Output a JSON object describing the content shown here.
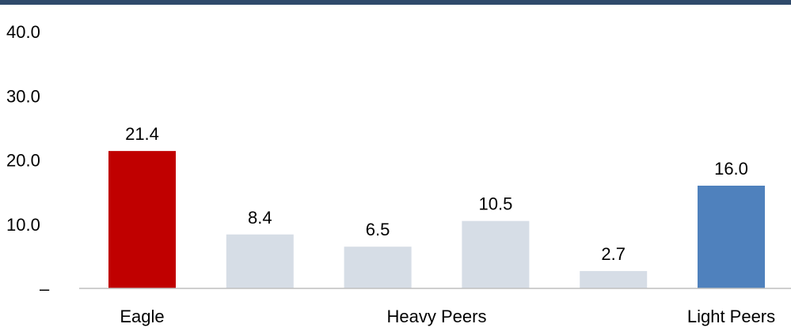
{
  "colors": {
    "top_bar": "#2f4a6b",
    "highlight": "#c00000",
    "peer": "#d6dde6",
    "light_peer": "#4f81bd",
    "axis_line": "#bfbfbf",
    "text": "#000000"
  },
  "chart_data": {
    "type": "bar",
    "ylim": [
      0,
      40
    ],
    "yticks": [
      {
        "value": 0,
        "label": "–"
      },
      {
        "value": 10,
        "label": "10.0"
      },
      {
        "value": 20,
        "label": "20.0"
      },
      {
        "value": 30,
        "label": "30.0"
      },
      {
        "value": 40,
        "label": "40.0"
      }
    ],
    "bars": [
      {
        "value": 21.4,
        "label": "21.4",
        "color": "#c00000"
      },
      {
        "value": 8.4,
        "label": "8.4",
        "color": "#d6dde6"
      },
      {
        "value": 6.5,
        "label": "6.5",
        "color": "#d6dde6"
      },
      {
        "value": 10.5,
        "label": "10.5",
        "color": "#d6dde6"
      },
      {
        "value": 2.7,
        "label": "2.7",
        "color": "#d6dde6"
      },
      {
        "value": 16.0,
        "label": "16.0",
        "color": "#4f81bd"
      }
    ],
    "groups": [
      {
        "label": "Eagle",
        "bar_start": 0,
        "bar_end": 0
      },
      {
        "label": "Heavy Peers",
        "bar_start": 1,
        "bar_end": 4
      },
      {
        "label": "Light Peers",
        "bar_start": 5,
        "bar_end": 5
      }
    ],
    "grid": false,
    "legend": "none"
  }
}
